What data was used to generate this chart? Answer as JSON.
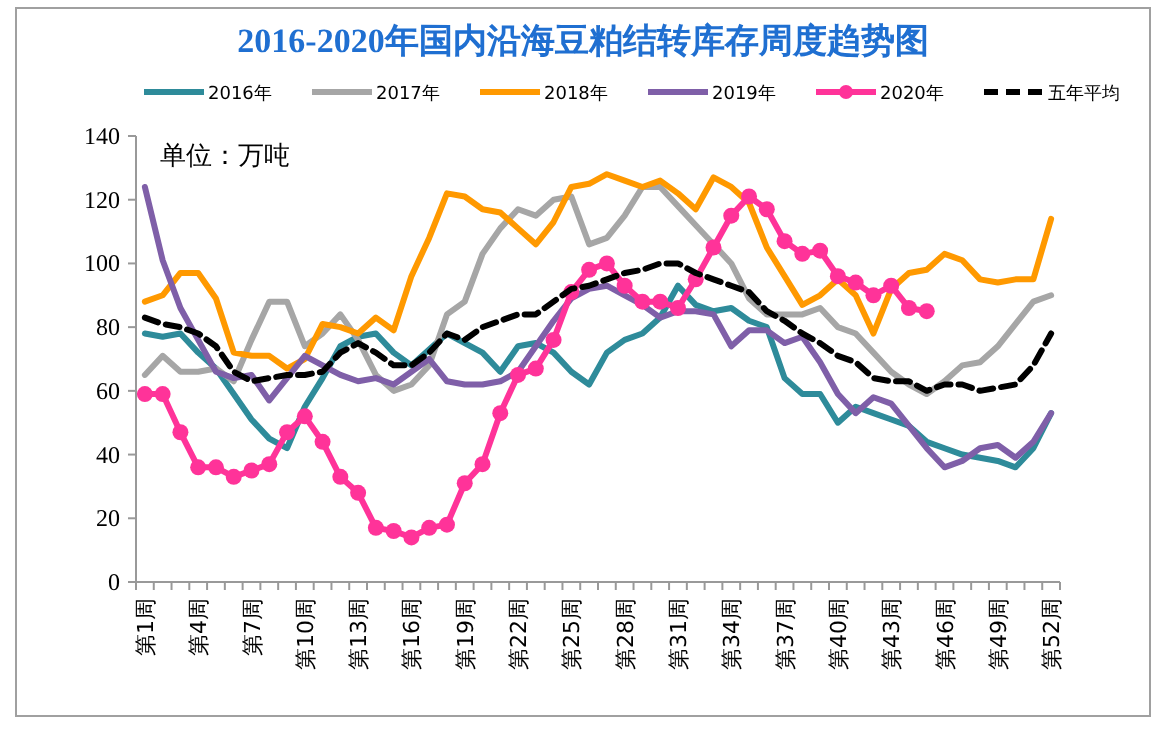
{
  "chart_data": {
    "type": "line",
    "title": "2016-2020年国内沿海豆粕结转库存周度趋势图",
    "annotations": [
      "单位：万吨"
    ],
    "categories": [
      "第1周",
      null,
      null,
      "第4周",
      null,
      null,
      "第7周",
      null,
      null,
      "第10周",
      null,
      null,
      "第13周",
      null,
      null,
      "第16周",
      null,
      null,
      "第19周",
      null,
      null,
      "第22周",
      null,
      null,
      "第25周",
      null,
      null,
      "第28周",
      null,
      null,
      "第31周",
      null,
      null,
      "第34周",
      null,
      null,
      "第37周",
      null,
      null,
      "第40周",
      null,
      null,
      "第43周",
      null,
      null,
      "第46周",
      null,
      null,
      "第49周",
      null,
      null,
      "第52周"
    ],
    "ylim": [
      0,
      140
    ],
    "yticks": [
      0,
      20,
      40,
      60,
      80,
      100,
      120,
      140
    ],
    "grid": false,
    "legend": "top",
    "series": [
      {
        "name": "2016年",
        "color": "#2e8b9a",
        "values": [
          78,
          77,
          78,
          72,
          67,
          59,
          51,
          45,
          42,
          55,
          64,
          74,
          77,
          78,
          72,
          68,
          73,
          78,
          75,
          72,
          66,
          74,
          75,
          72,
          66,
          62,
          72,
          76,
          78,
          83,
          93,
          87,
          85,
          86,
          82,
          80,
          64,
          59,
          59,
          50,
          55,
          53,
          51,
          49,
          44,
          42,
          40,
          39,
          38,
          36,
          42,
          53
        ]
      },
      {
        "name": "2017年",
        "color": "#a6a6a6",
        "values": [
          65,
          71,
          66,
          66,
          67,
          63,
          76,
          88,
          88,
          74,
          78,
          84,
          76,
          65,
          60,
          62,
          68,
          84,
          88,
          103,
          111,
          117,
          115,
          120,
          121,
          106,
          108,
          115,
          124,
          124,
          118,
          112,
          106,
          100,
          89,
          84,
          84,
          84,
          86,
          80,
          78,
          72,
          66,
          62,
          59,
          63,
          68,
          69,
          74,
          81,
          88,
          90
        ]
      },
      {
        "name": "2018年",
        "color": "#ff9900",
        "values": [
          88,
          90,
          97,
          97,
          89,
          72,
          71,
          71,
          67,
          70,
          81,
          80,
          78,
          83,
          79,
          96,
          108,
          122,
          121,
          117,
          116,
          111,
          106,
          113,
          124,
          125,
          128,
          126,
          124,
          126,
          122,
          117,
          127,
          124,
          119,
          105,
          96,
          87,
          90,
          95,
          90,
          78,
          92,
          97,
          98,
          103,
          101,
          95,
          94,
          95,
          95,
          114
        ]
      },
      {
        "name": "2019年",
        "color": "#7f5fa8",
        "values": [
          124,
          101,
          86,
          76,
          66,
          64,
          65,
          57,
          64,
          71,
          68,
          65,
          63,
          64,
          62,
          66,
          70,
          63,
          62,
          62,
          63,
          66,
          74,
          82,
          89,
          92,
          93,
          90,
          87,
          83,
          85,
          85,
          84,
          74,
          79,
          79,
          75,
          77,
          69,
          59,
          53,
          58,
          56,
          49,
          42,
          36,
          38,
          42,
          43,
          39,
          44,
          53
        ]
      },
      {
        "name": "2020年",
        "color": "#ff3399",
        "marker": "circle",
        "values": [
          59,
          59,
          47,
          36,
          36,
          33,
          35,
          37,
          47,
          52,
          44,
          33,
          28,
          17,
          16,
          14,
          17,
          18,
          31,
          37,
          53,
          65,
          67,
          76,
          91,
          98,
          100,
          93,
          88,
          88,
          86,
          95,
          105,
          115,
          121,
          117,
          107,
          103,
          104,
          96,
          94,
          90,
          93,
          86,
          85,
          null,
          null,
          null,
          null,
          null,
          null,
          null
        ]
      },
      {
        "name": "五年平均",
        "color": "#000000",
        "line_style": "dashed",
        "values": [
          83,
          81,
          80,
          78,
          74,
          66,
          63,
          64,
          65,
          65,
          66,
          72,
          75,
          72,
          68,
          68,
          72,
          78,
          76,
          80,
          82,
          84,
          84,
          88,
          92,
          93,
          95,
          97,
          98,
          100,
          100,
          97,
          95,
          93,
          91,
          85,
          82,
          78,
          75,
          71,
          69,
          64,
          63,
          63,
          60,
          62,
          62,
          60,
          61,
          62,
          68,
          78
        ]
      }
    ]
  }
}
